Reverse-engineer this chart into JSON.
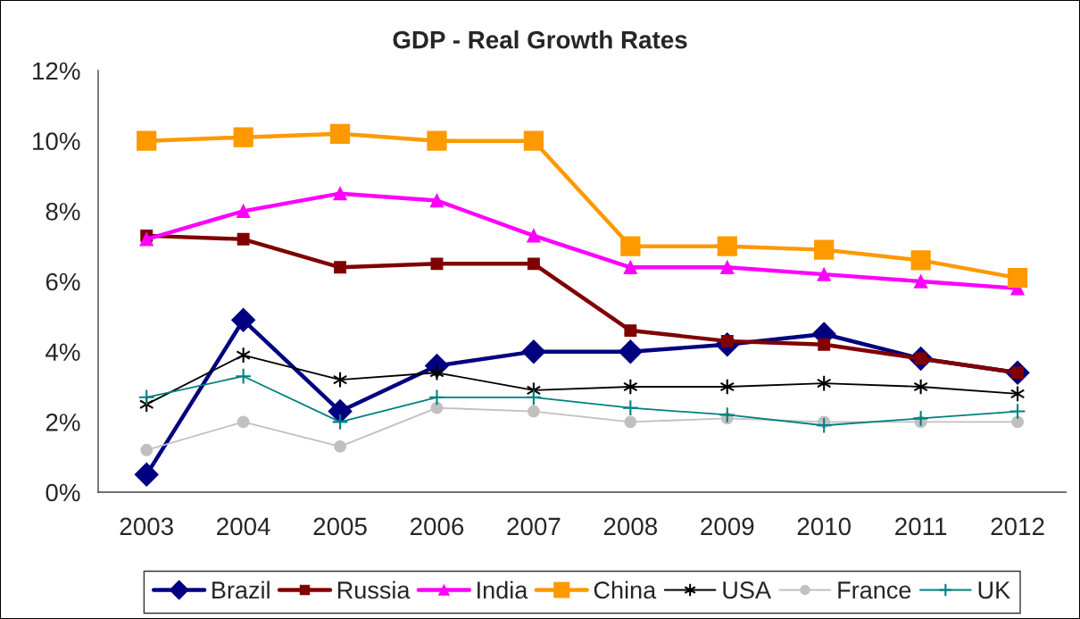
{
  "chart_data": {
    "type": "line",
    "title": "GDP - Real Growth Rates",
    "categories": [
      "2003",
      "2004",
      "2005",
      "2006",
      "2007",
      "2008",
      "2009",
      "2010",
      "2011",
      "2012"
    ],
    "series": [
      {
        "name": "Brazil",
        "color": "#000080",
        "marker": "diamond",
        "values": [
          0.5,
          4.9,
          2.3,
          3.6,
          4.0,
          4.0,
          4.2,
          4.5,
          3.8,
          3.4
        ]
      },
      {
        "name": "Russia",
        "color": "#800000",
        "marker": "square",
        "values": [
          7.3,
          7.2,
          6.4,
          6.5,
          6.5,
          4.6,
          4.3,
          4.2,
          3.8,
          3.4
        ]
      },
      {
        "name": "India",
        "color": "#ff00ff",
        "marker": "triangle",
        "values": [
          7.2,
          8.0,
          8.5,
          8.3,
          7.3,
          6.4,
          6.4,
          6.2,
          6.0,
          5.8
        ]
      },
      {
        "name": "China",
        "color": "#ff9900",
        "marker": "square",
        "values": [
          10.0,
          10.1,
          10.2,
          10.0,
          10.0,
          7.0,
          7.0,
          6.9,
          6.6,
          6.1
        ]
      },
      {
        "name": "USA",
        "color": "#000000",
        "marker": "cross",
        "values": [
          2.5,
          3.9,
          3.2,
          3.4,
          2.9,
          3.0,
          3.0,
          3.1,
          3.0,
          2.8
        ]
      },
      {
        "name": "France",
        "color": "#c0c0c0",
        "marker": "circle",
        "values": [
          1.2,
          2.0,
          1.3,
          2.4,
          2.3,
          2.0,
          2.1,
          2.0,
          2.0,
          2.0
        ]
      },
      {
        "name": "UK",
        "color": "#008080",
        "marker": "cross",
        "values": [
          2.7,
          3.3,
          2.0,
          2.7,
          2.7,
          2.4,
          2.2,
          1.9,
          2.1,
          2.3
        ]
      }
    ],
    "ylim": [
      0,
      12
    ],
    "yticks": [
      {
        "value": 0,
        "label": "0%"
      },
      {
        "value": 2,
        "label": "2%"
      },
      {
        "value": 4,
        "label": "4%"
      },
      {
        "value": 6,
        "label": "6%"
      },
      {
        "value": 8,
        "label": "8%"
      },
      {
        "value": 10,
        "label": "10%"
      },
      {
        "value": 12,
        "label": "12%"
      }
    ],
    "grid": false,
    "legend": "bottom"
  }
}
